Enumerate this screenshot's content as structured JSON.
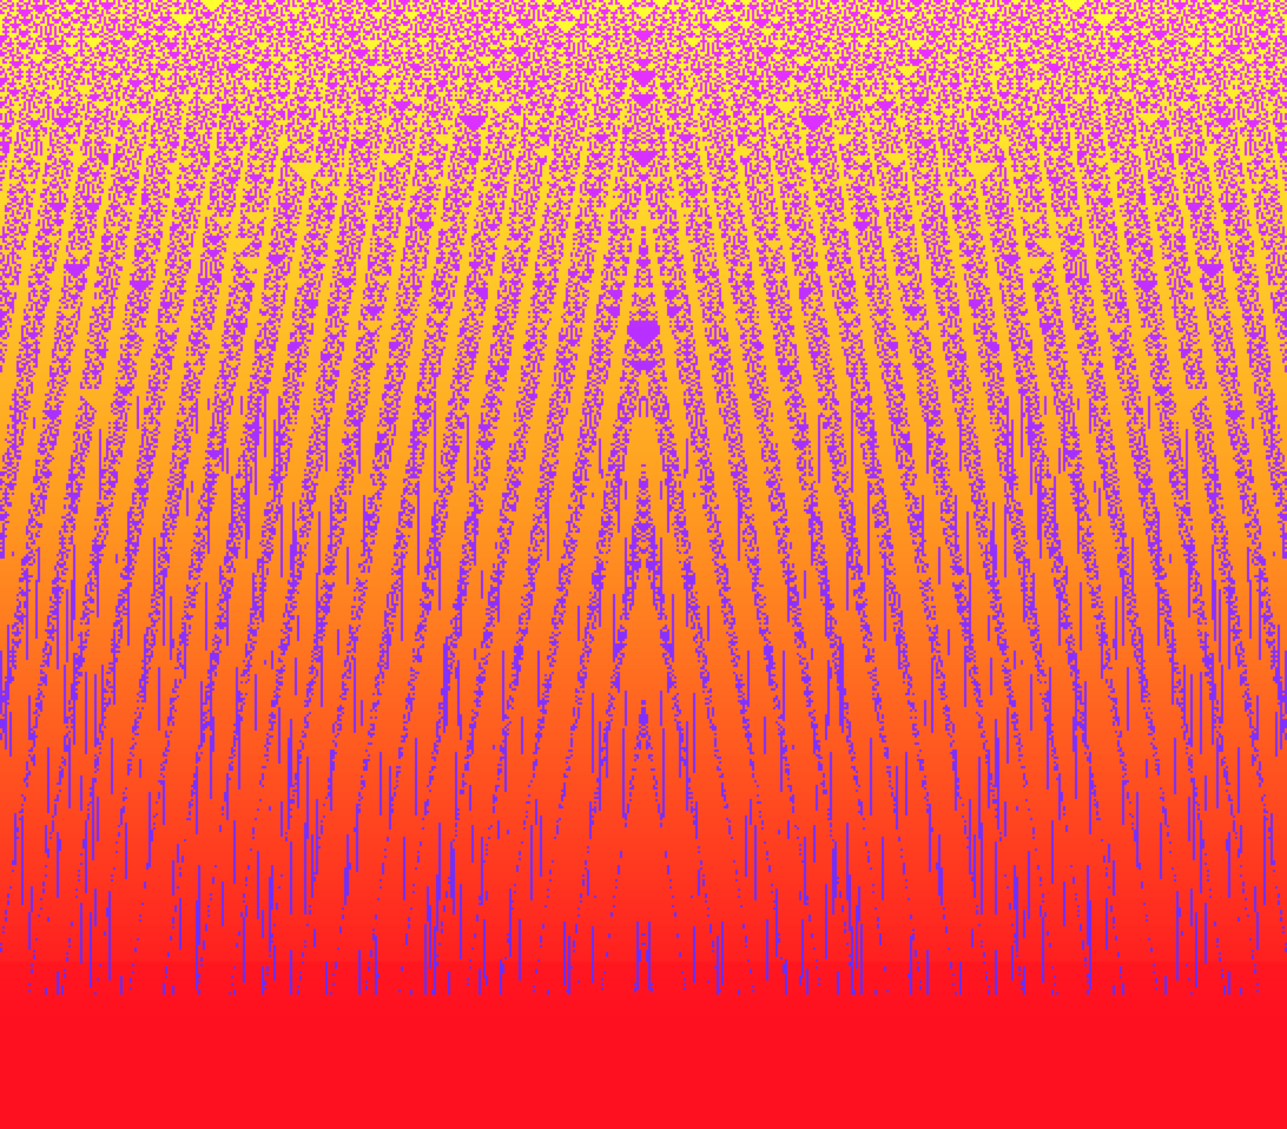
{
  "artwork": {
    "kind": "generative cellular-automaton pattern",
    "colors": {
      "top_background": "#f030ff",
      "top_pattern": "#ffff30",
      "middle_pattern": "#ff9a20",
      "bottom_pattern": "#ff1020",
      "accent_streaks": "#5030ff"
    }
  }
}
